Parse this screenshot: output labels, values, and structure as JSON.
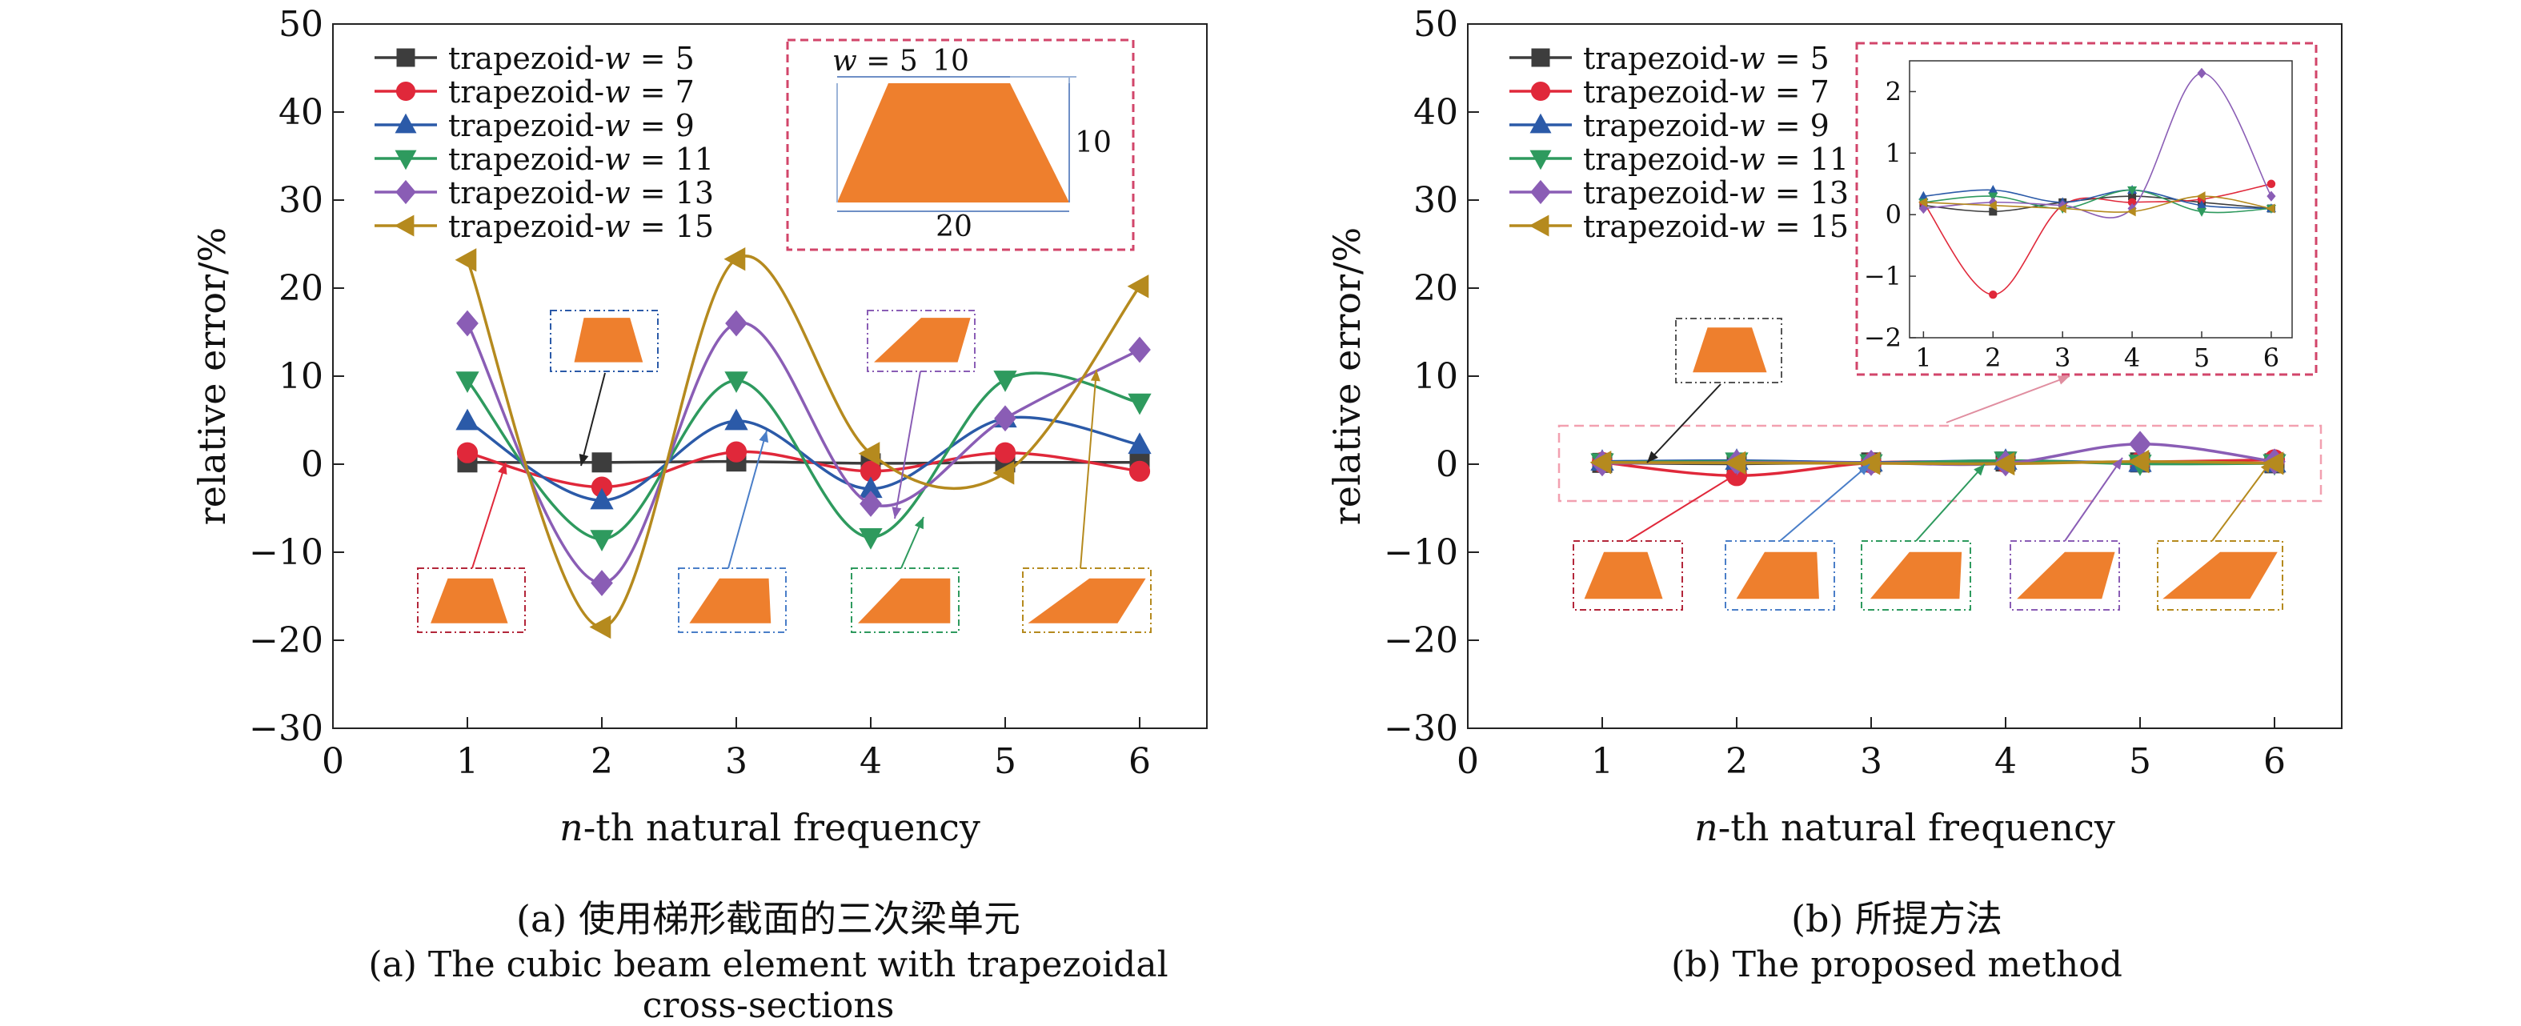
{
  "chart_data": [
    {
      "type": "line",
      "panel": "a",
      "xlabel_italic": "n",
      "xlabel_rest": "-th natural frequency",
      "ylabel": "relative error/%",
      "xlim": [
        0,
        6.5
      ],
      "ylim": [
        -30,
        50
      ],
      "xticks": [
        0,
        1,
        2,
        3,
        4,
        5,
        6
      ],
      "yticks": [
        -30,
        -20,
        -10,
        0,
        10,
        20,
        30,
        40,
        50
      ],
      "x": [
        1,
        2,
        3,
        4,
        5,
        6
      ],
      "legend_position": "top-left",
      "series": [
        {
          "name_prefix": "trapezoid-",
          "name_var": "w",
          "name_suffix": " = 5",
          "color": "#3d3d3d",
          "marker": "square",
          "values": [
            0.2,
            0.2,
            0.3,
            0.1,
            0.2,
            0.2
          ]
        },
        {
          "name_prefix": "trapezoid-",
          "name_var": "w",
          "name_suffix": " = 7",
          "color": "#e0283a",
          "marker": "circle",
          "values": [
            1.3,
            -2.6,
            1.4,
            -0.8,
            1.3,
            -0.8
          ]
        },
        {
          "name_prefix": "trapezoid-",
          "name_var": "w",
          "name_suffix": " = 9",
          "color": "#2b5aa8",
          "marker": "triangle-up",
          "values": [
            4.9,
            -4.1,
            4.9,
            -2.8,
            5.2,
            2.2
          ]
        },
        {
          "name_prefix": "trapezoid-",
          "name_var": "w",
          "name_suffix": " = 11",
          "color": "#2e9a5e",
          "marker": "triangle-down",
          "values": [
            9.5,
            -8.5,
            9.5,
            -8.3,
            9.6,
            7.0
          ]
        },
        {
          "name_prefix": "trapezoid-",
          "name_var": "w",
          "name_suffix": " = 13",
          "color": "#8a5db5",
          "marker": "diamond",
          "values": [
            16.0,
            -13.5,
            16.0,
            -4.5,
            5.2,
            13.0
          ]
        },
        {
          "name_prefix": "trapezoid-",
          "name_var": "w",
          "name_suffix": " = 15",
          "color": "#b58a1e",
          "marker": "triangle-left",
          "values": [
            23.2,
            -18.5,
            23.3,
            1.2,
            -1.0,
            20.2
          ]
        }
      ],
      "inset_dimensions": {
        "w_label": "w",
        "w_value": " = 5",
        "top": "10",
        "height": "10",
        "bottom": "20"
      }
    },
    {
      "type": "line",
      "panel": "b",
      "xlabel_italic": "n",
      "xlabel_rest": "-th natural frequency",
      "ylabel": "relative error/%",
      "xlim": [
        0,
        6.5
      ],
      "ylim": [
        -30,
        50
      ],
      "xticks": [
        0,
        1,
        2,
        3,
        4,
        5,
        6
      ],
      "yticks": [
        -30,
        -20,
        -10,
        0,
        10,
        20,
        30,
        40,
        50
      ],
      "x": [
        1,
        2,
        3,
        4,
        5,
        6
      ],
      "legend_position": "top-left",
      "series": [
        {
          "name_prefix": "trapezoid-",
          "name_var": "w",
          "name_suffix": " = 5",
          "color": "#3d3d3d",
          "marker": "square",
          "values": [
            0.15,
            0.05,
            0.2,
            0.3,
            0.2,
            0.1
          ]
        },
        {
          "name_prefix": "trapezoid-",
          "name_var": "w",
          "name_suffix": " = 7",
          "color": "#e0283a",
          "marker": "circle",
          "values": [
            0.2,
            -1.3,
            0.15,
            0.2,
            0.25,
            0.5
          ]
        },
        {
          "name_prefix": "trapezoid-",
          "name_var": "w",
          "name_suffix": " = 9",
          "color": "#2b5aa8",
          "marker": "triangle-up",
          "values": [
            0.3,
            0.4,
            0.2,
            0.4,
            0.15,
            0.1
          ]
        },
        {
          "name_prefix": "trapezoid-",
          "name_var": "w",
          "name_suffix": " = 11",
          "color": "#2e9a5e",
          "marker": "triangle-down",
          "values": [
            0.2,
            0.3,
            0.1,
            0.4,
            0.05,
            0.1
          ]
        },
        {
          "name_prefix": "trapezoid-",
          "name_var": "w",
          "name_suffix": " = 13",
          "color": "#8a5db5",
          "marker": "diamond",
          "values": [
            0.1,
            0.2,
            0.15,
            0.1,
            2.3,
            0.3
          ]
        },
        {
          "name_prefix": "trapezoid-",
          "name_var": "w",
          "name_suffix": " = 15",
          "color": "#b58a1e",
          "marker": "triangle-left",
          "values": [
            0.2,
            0.15,
            0.1,
            0.05,
            0.3,
            0.1
          ]
        }
      ],
      "inset": {
        "xlim": [
          0.8,
          6.3
        ],
        "ylim": [
          -2,
          2.5
        ],
        "xticks": [
          1,
          2,
          3,
          4,
          5,
          6
        ],
        "yticks": [
          -2,
          -1,
          0,
          1,
          2
        ]
      }
    }
  ],
  "captions": {
    "a_zh": "(a) 使用梯形截面的三次梁单元",
    "a_en": "(a) The cubic beam element with trapezoidal cross-sections",
    "b_zh": "(b) 所提方法",
    "b_en": "(b) The proposed method"
  },
  "colors": {
    "shape_fill": "#ee7f2d",
    "inset_frame": "#d2456a",
    "zoom_frame": "#f2a0b0",
    "axis": "#222222"
  }
}
